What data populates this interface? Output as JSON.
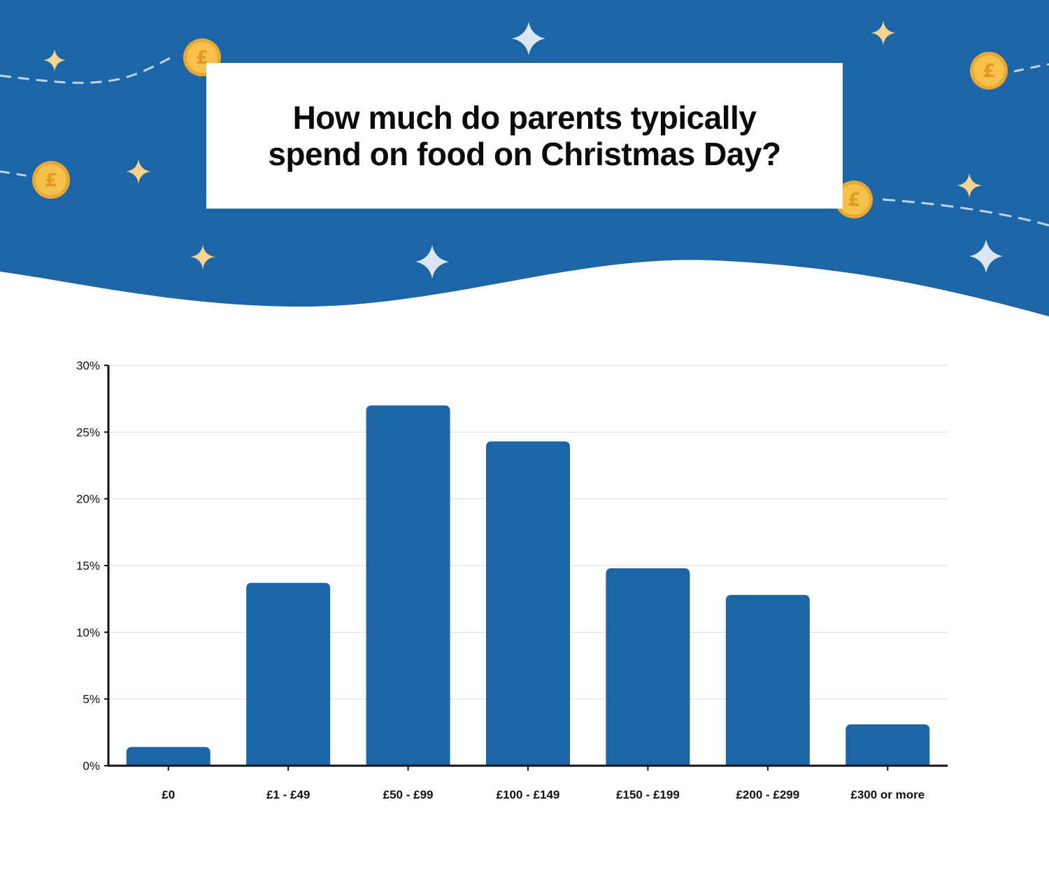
{
  "header": {
    "title_line1": "How much do parents typically",
    "title_line2": "spend on food on Christmas Day?",
    "coin_symbol": "£"
  },
  "colors": {
    "background_blue": "#1c66a8",
    "bar": "#1c66a8",
    "coin": "#f7c04a",
    "sparkle_gold": "#f6d38f",
    "sparkle_light": "#dce6f2"
  },
  "chart_data": {
    "type": "bar",
    "title": "How much do parents typically spend on food on Christmas Day?",
    "categories": [
      "£0",
      "£1 - £49",
      "£50 - £99",
      "£100 - £149",
      "£150 - £199",
      "£200 - £299",
      "£300 or more"
    ],
    "values": [
      1.4,
      13.7,
      27.0,
      24.3,
      14.8,
      12.8,
      3.1
    ],
    "ylim": [
      0,
      30
    ],
    "yticks": [
      0,
      5,
      10,
      15,
      20,
      25,
      30
    ],
    "ytick_labels": [
      "0%",
      "5%",
      "10%",
      "15%",
      "20%",
      "25%",
      "30%"
    ],
    "xlabel": "",
    "ylabel": "",
    "grid": true
  }
}
